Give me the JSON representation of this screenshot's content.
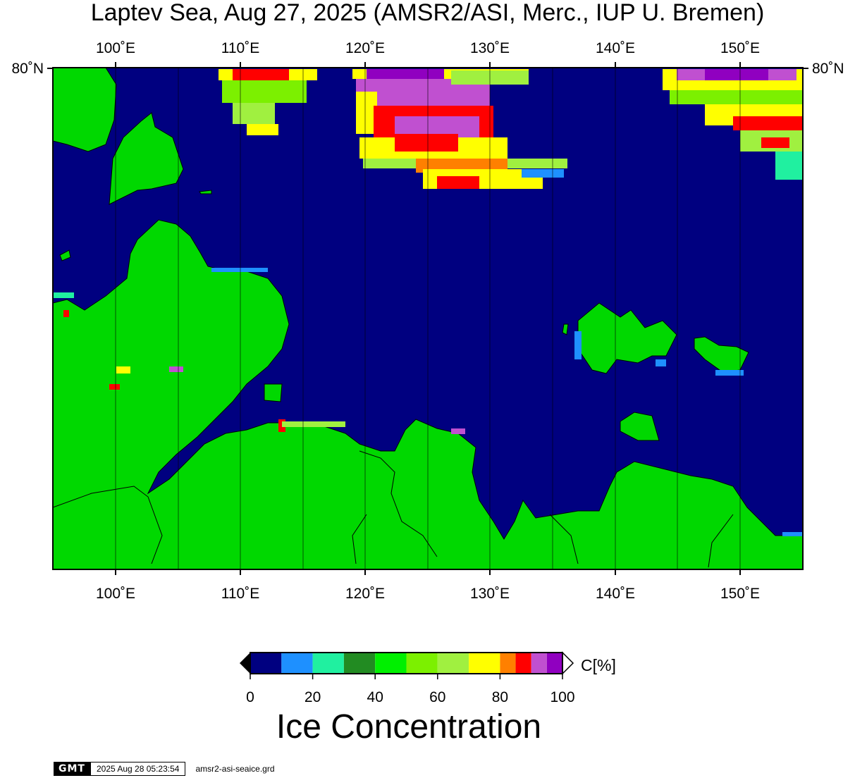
{
  "title": "Laptev Sea, Aug 27, 2025 (AMSR2/ASI, Merc., IUP U. Bremen)",
  "map": {
    "lon_ticks": [
      "100˚E",
      "110˚E",
      "120˚E",
      "130˚E",
      "140˚E",
      "150˚E"
    ],
    "lat_tick": "80˚N",
    "colors": {
      "open_water": "#000080",
      "land": "#00d800",
      "frame": "#000000"
    }
  },
  "colorbar": {
    "unit": "C[%]",
    "title": "Ice Concentration",
    "tick_labels": [
      "0",
      "20",
      "40",
      "60",
      "80",
      "100"
    ],
    "bins": [
      {
        "range": [
          0,
          10
        ],
        "color": "#000080"
      },
      {
        "range": [
          10,
          20
        ],
        "color": "#1e90ff"
      },
      {
        "range": [
          20,
          30
        ],
        "color": "#20f0a0"
      },
      {
        "range": [
          30,
          40
        ],
        "color": "#228b22"
      },
      {
        "range": [
          40,
          50
        ],
        "color": "#00f000"
      },
      {
        "range": [
          50,
          60
        ],
        "color": "#7cf000"
      },
      {
        "range": [
          60,
          70
        ],
        "color": "#a0f040"
      },
      {
        "range": [
          70,
          80
        ],
        "color": "#ffff00"
      },
      {
        "range": [
          80,
          85
        ],
        "color": "#ff8000"
      },
      {
        "range": [
          85,
          90
        ],
        "color": "#ff0000"
      },
      {
        "range": [
          90,
          95
        ],
        "color": "#c050d0"
      },
      {
        "range": [
          95,
          100
        ],
        "color": "#9000c0"
      }
    ]
  },
  "footer": {
    "logo": "GMT",
    "timestamp": "2025 Aug 28 05:23:54",
    "filename": "amsr2-asi-seaice.grd"
  }
}
